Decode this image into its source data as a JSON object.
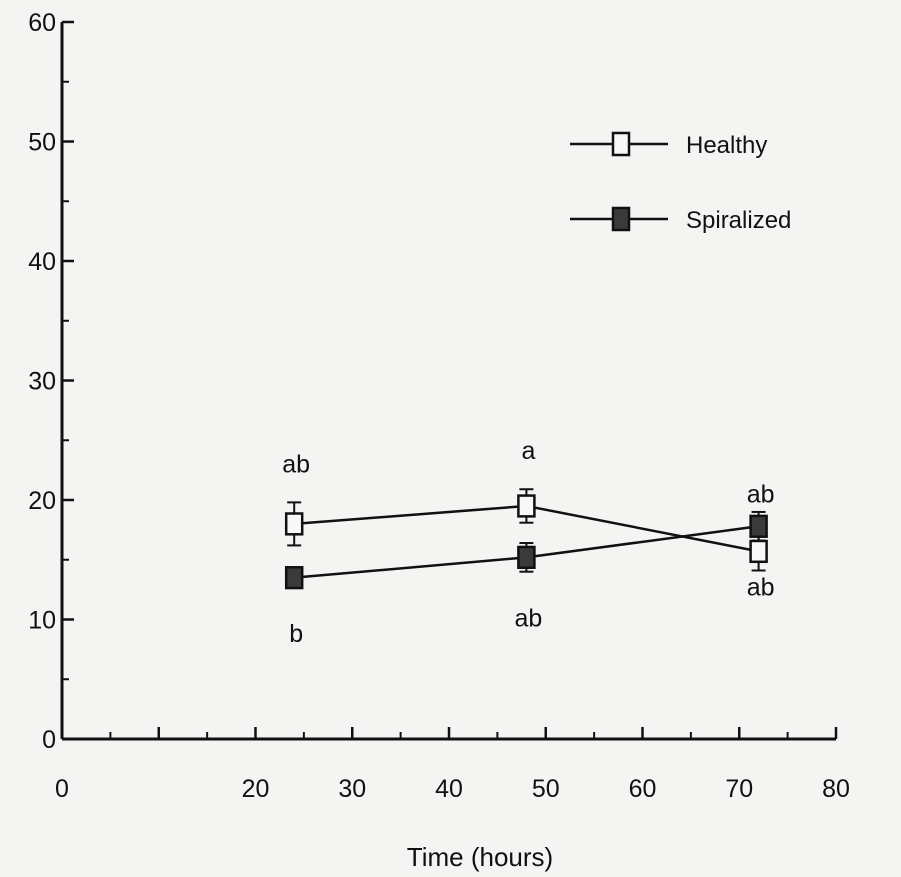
{
  "chart_data": {
    "type": "line",
    "xlabel": "Time  (hours)",
    "ylabel": "",
    "xlim": [
      0,
      80
    ],
    "ylim": [
      0,
      60
    ],
    "x_ticks": [
      0,
      10,
      20,
      30,
      40,
      50,
      60,
      70,
      80
    ],
    "x_tick_labels": [
      "0",
      "",
      "20",
      "30",
      "40",
      "50",
      "60",
      "70",
      "80"
    ],
    "y_ticks": [
      0,
      10,
      20,
      30,
      40,
      50,
      60
    ],
    "y_tick_labels": [
      "0",
      "10",
      "20",
      "30",
      "40",
      "50",
      "60"
    ],
    "grid": false,
    "legend_position": "top-right",
    "x": [
      24,
      48,
      72
    ],
    "series": [
      {
        "name": "Healthy",
        "marker": "open-square",
        "values": [
          18.0,
          19.5,
          15.7
        ],
        "errors": [
          1.8,
          1.4,
          1.6
        ],
        "letters": [
          "ab",
          "a",
          "ab"
        ],
        "letter_side": "above",
        "color": "#111111"
      },
      {
        "name": "Spiralized",
        "marker": "filled-square",
        "values": [
          13.5,
          15.2,
          17.8
        ],
        "errors": [
          0.8,
          1.2,
          1.2
        ],
        "letters": [
          "b",
          "ab",
          "ab"
        ],
        "letter_side": "below",
        "color": "#333333"
      }
    ]
  }
}
